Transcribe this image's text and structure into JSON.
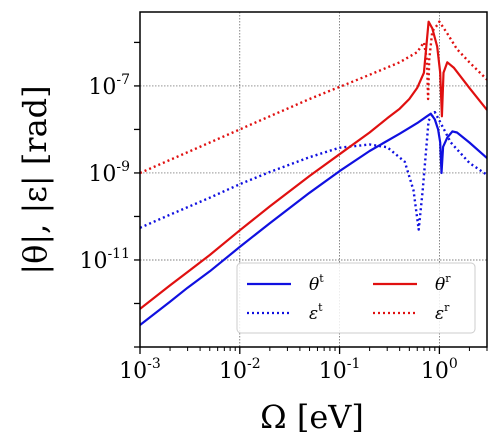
{
  "chart_data": {
    "type": "line",
    "xscale": "log",
    "yscale": "log",
    "xlim": [
      0.001,
      3.0
    ],
    "ylim": [
      1e-13,
      5e-06
    ],
    "grid": true,
    "xlabel": "Ω [eV]",
    "ylabel": "|θ|, |ε| [rad]",
    "x_ticks": [
      {
        "base": "10",
        "exp": "-3",
        "value": 0.001
      },
      {
        "base": "10",
        "exp": "-2",
        "value": 0.01
      },
      {
        "base": "10",
        "exp": "-1",
        "value": 0.1
      },
      {
        "base": "10",
        "exp": "0",
        "value": 1
      }
    ],
    "y_ticks": [
      {
        "base": "10",
        "exp": "-7",
        "value": 1e-07
      },
      {
        "base": "10",
        "exp": "-9",
        "value": 1e-09
      },
      {
        "base": "10",
        "exp": "-11",
        "value": 1e-11
      }
    ],
    "legend": {
      "placement": "lower-right",
      "ncol": 2
    },
    "series": [
      {
        "name": "θ",
        "sup": "t",
        "color": "#1010e0",
        "style": "solid",
        "points": [
          [
            0.001,
            3.2e-13
          ],
          [
            0.002,
            1.1e-12
          ],
          [
            0.003,
            2.3e-12
          ],
          [
            0.005,
            5.5e-12
          ],
          [
            0.01,
            2e-11
          ],
          [
            0.02,
            7e-11
          ],
          [
            0.05,
            3.5e-10
          ],
          [
            0.1,
            1.1e-09
          ],
          [
            0.2,
            3.2e-09
          ],
          [
            0.4,
            8e-09
          ],
          [
            0.6,
            1.4e-08
          ],
          [
            0.75,
            2e-08
          ],
          [
            0.82,
            2.3e-08
          ],
          [
            0.9,
            1.7e-08
          ],
          [
            0.97,
            1e-08
          ],
          [
            1.02,
            5e-09
          ],
          [
            1.05,
            1e-09
          ],
          [
            1.09,
            4e-09
          ],
          [
            1.2,
            6.5e-09
          ],
          [
            1.35,
            9e-09
          ],
          [
            1.5,
            8.5e-09
          ],
          [
            2.0,
            5e-09
          ],
          [
            3.0,
            2.2e-09
          ]
        ]
      },
      {
        "name": "ε",
        "sup": "t",
        "color": "#1010e0",
        "style": "dotted",
        "points": [
          [
            0.001,
            5.5e-11
          ],
          [
            0.002,
            1.1e-10
          ],
          [
            0.005,
            2.7e-10
          ],
          [
            0.01,
            5.5e-10
          ],
          [
            0.02,
            1.05e-09
          ],
          [
            0.05,
            2.3e-09
          ],
          [
            0.1,
            3.8e-09
          ],
          [
            0.2,
            4.5e-09
          ],
          [
            0.3,
            3.9e-09
          ],
          [
            0.45,
            1.8e-09
          ],
          [
            0.55,
            4e-10
          ],
          [
            0.62,
            5e-11
          ],
          [
            0.68,
            4e-10
          ],
          [
            0.78,
            1.6e-08
          ],
          [
            0.9,
            2.5e-08
          ],
          [
            1.0,
            1.6e-08
          ],
          [
            1.3,
            5e-09
          ],
          [
            2.0,
            1.7e-09
          ],
          [
            3.0,
            9e-10
          ]
        ]
      },
      {
        "name": "θ",
        "sup": "r",
        "color": "#e01010",
        "style": "solid",
        "points": [
          [
            0.001,
            7.5e-13
          ],
          [
            0.002,
            2.6e-12
          ],
          [
            0.003,
            5.3e-12
          ],
          [
            0.005,
            1.3e-11
          ],
          [
            0.01,
            4.8e-11
          ],
          [
            0.02,
            1.7e-10
          ],
          [
            0.05,
            8.5e-10
          ],
          [
            0.1,
            2.7e-09
          ],
          [
            0.2,
            8.5e-09
          ],
          [
            0.3,
            1.8e-08
          ],
          [
            0.4,
            3e-08
          ],
          [
            0.5,
            5e-08
          ],
          [
            0.6,
            9e-08
          ],
          [
            0.7,
            2e-07
          ],
          [
            0.78,
            3e-06
          ],
          [
            0.85,
            2.1e-06
          ],
          [
            0.95,
            8e-07
          ],
          [
            1.02,
            2e-07
          ],
          [
            1.06,
            2e-08
          ],
          [
            1.1,
            2e-07
          ],
          [
            1.2,
            3.5e-07
          ],
          [
            1.4,
            2.6e-07
          ],
          [
            2.0,
            9e-08
          ],
          [
            3.0,
            2.8e-08
          ]
        ]
      },
      {
        "name": "ε",
        "sup": "r",
        "color": "#e01010",
        "style": "dotted",
        "points": [
          [
            0.001,
            1e-09
          ],
          [
            0.002,
            2e-09
          ],
          [
            0.005,
            5e-09
          ],
          [
            0.01,
            1e-08
          ],
          [
            0.02,
            2e-08
          ],
          [
            0.05,
            5e-08
          ],
          [
            0.1,
            9.5e-08
          ],
          [
            0.2,
            1.8e-07
          ],
          [
            0.4,
            3.5e-07
          ],
          [
            0.6,
            6e-07
          ],
          [
            0.7,
            1e-06
          ],
          [
            0.75,
            4e-07
          ],
          [
            0.77,
            5e-08
          ],
          [
            0.79,
            4e-07
          ],
          [
            0.85,
            1.8e-06
          ],
          [
            0.95,
            2.5e-06
          ],
          [
            1.0,
            3e-06
          ],
          [
            1.2,
            1.6e-06
          ],
          [
            1.5,
            7e-07
          ],
          [
            2.0,
            3.5e-07
          ],
          [
            3.0,
            1.4e-07
          ]
        ]
      }
    ]
  }
}
